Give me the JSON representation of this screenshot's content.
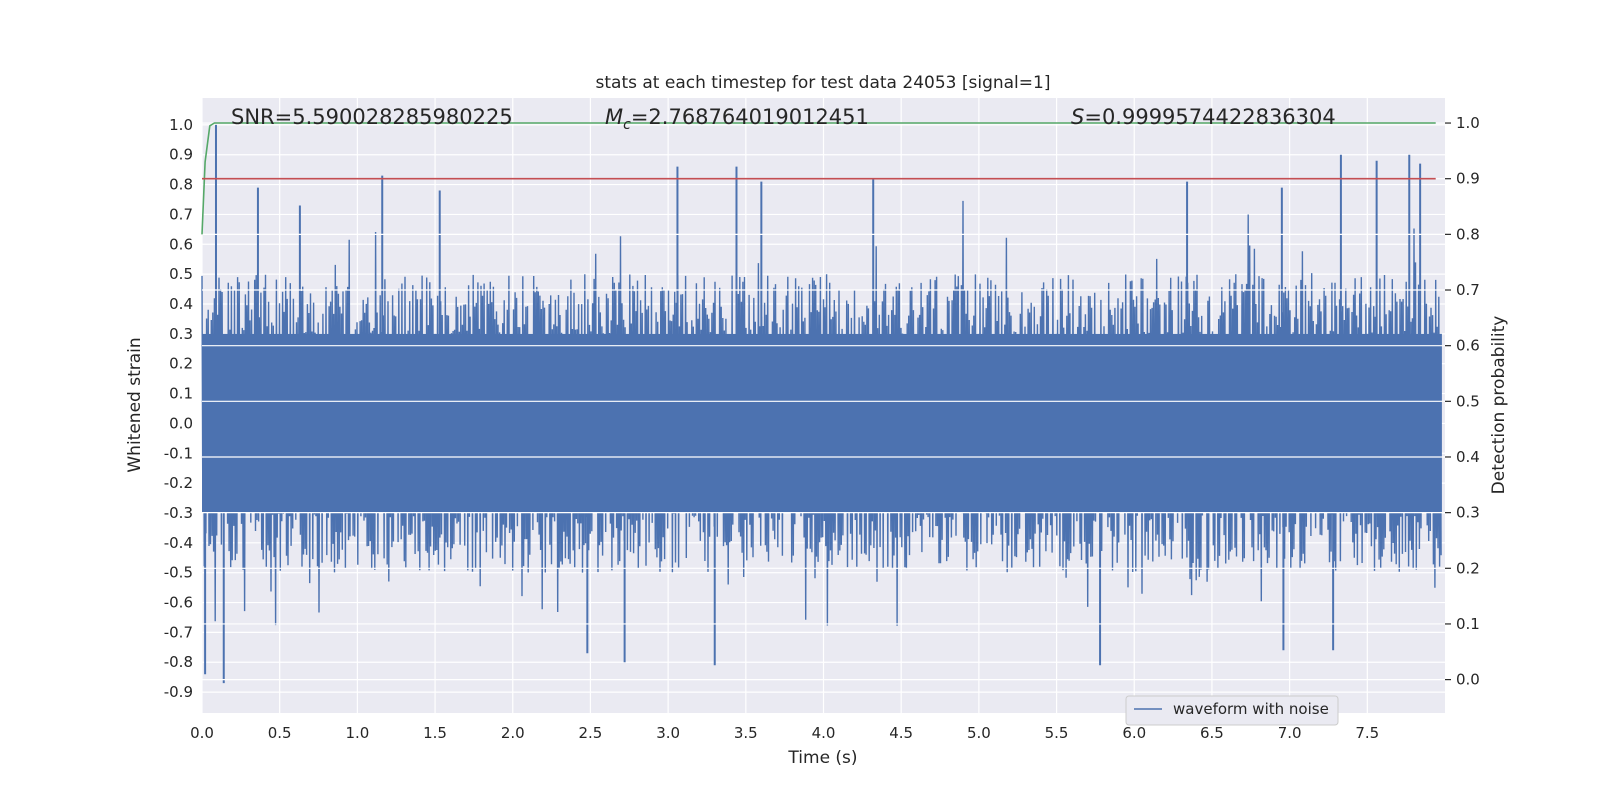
{
  "chart_data": {
    "type": "line",
    "title": "stats at each timestep for test data 24053 [signal=1]",
    "xlabel": "Time (s)",
    "ylabel": "Whitened strain",
    "y2label": "Detection probability",
    "xlim": [
      0.0,
      8.0
    ],
    "ylim": [
      -0.97,
      1.09
    ],
    "y2lim": [
      -0.06,
      1.045
    ],
    "x_ticks": [
      "0.0",
      "0.5",
      "1.0",
      "1.5",
      "2.0",
      "2.5",
      "3.0",
      "3.5",
      "4.0",
      "4.5",
      "5.0",
      "5.5",
      "6.0",
      "6.5",
      "7.0",
      "7.5"
    ],
    "y_ticks": [
      "-0.9",
      "-0.8",
      "-0.7",
      "-0.6",
      "-0.5",
      "-0.4",
      "-0.3",
      "-0.2",
      "-0.1",
      "0.0",
      "0.1",
      "0.2",
      "0.3",
      "0.4",
      "0.5",
      "0.6",
      "0.7",
      "0.8",
      "0.9",
      "1.0"
    ],
    "y2_ticks": [
      "0.0",
      "0.1",
      "0.2",
      "0.3",
      "0.4",
      "0.5",
      "0.6",
      "0.7",
      "0.8",
      "0.9",
      "1.0"
    ],
    "grid": true,
    "legend_position": "lower-right",
    "annotations": {
      "snr": "SNR=5.590028285980225",
      "mc_symbol": "M",
      "mc_subscript": "c",
      "mc_value": "=2.768764019012451",
      "s_symbol": "S",
      "s_value": "=0.9999574422836304"
    },
    "series": [
      {
        "name": "waveform with noise",
        "axis": "left",
        "color": "#4c72b0",
        "description_values": {
          "dense_core_range": [
            -0.3,
            0.3
          ],
          "envelope_range": [
            -0.87,
            1.0
          ],
          "prominent_peaks": [
            {
              "x": 0.09,
              "y": 1.0
            },
            {
              "x": 0.36,
              "y": 0.79
            },
            {
              "x": 0.63,
              "y": 0.73
            },
            {
              "x": 1.16,
              "y": 0.83
            },
            {
              "x": 1.53,
              "y": 0.78
            },
            {
              "x": 3.06,
              "y": 0.86
            },
            {
              "x": 3.44,
              "y": 0.86
            },
            {
              "x": 3.6,
              "y": 0.81
            },
            {
              "x": 4.32,
              "y": 0.82
            },
            {
              "x": 6.34,
              "y": 0.81
            },
            {
              "x": 6.95,
              "y": 0.79
            },
            {
              "x": 7.33,
              "y": 0.9
            },
            {
              "x": 7.56,
              "y": 0.88
            },
            {
              "x": 7.77,
              "y": 0.9
            },
            {
              "x": 7.84,
              "y": 0.87
            }
          ],
          "prominent_troughs": [
            {
              "x": 0.02,
              "y": -0.84
            },
            {
              "x": 0.14,
              "y": -0.87
            },
            {
              "x": 2.48,
              "y": -0.77
            },
            {
              "x": 2.72,
              "y": -0.8
            },
            {
              "x": 3.3,
              "y": -0.81
            },
            {
              "x": 5.78,
              "y": -0.81
            },
            {
              "x": 6.96,
              "y": -0.76
            },
            {
              "x": 7.28,
              "y": -0.76
            }
          ]
        }
      },
      {
        "name": "",
        "axis": "right",
        "color": "#55a868",
        "x": [
          0.0,
          0.02,
          0.05,
          0.08,
          7.94
        ],
        "y": [
          0.8,
          0.93,
          0.995,
          1.0,
          1.0
        ]
      },
      {
        "name": "",
        "axis": "right",
        "color": "#c44e52",
        "x": [
          0.0,
          7.94
        ],
        "y": [
          0.9,
          0.9
        ]
      }
    ]
  }
}
